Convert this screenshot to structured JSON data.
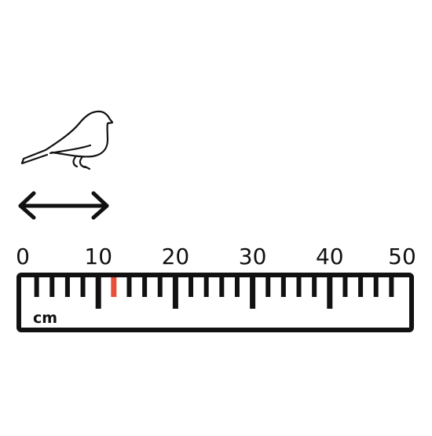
{
  "figure": {
    "bird": {
      "icon": "bird-icon"
    },
    "arrow": {
      "icon": "double-arrow-icon"
    },
    "ruler": {
      "unit_label": "cm",
      "labels": [
        "0",
        "10",
        "20",
        "30",
        "40",
        "50"
      ],
      "min": 0,
      "max": 50,
      "highlight_value": 12,
      "highlight_color": "#e8503a",
      "ink_color": "#111111"
    }
  }
}
